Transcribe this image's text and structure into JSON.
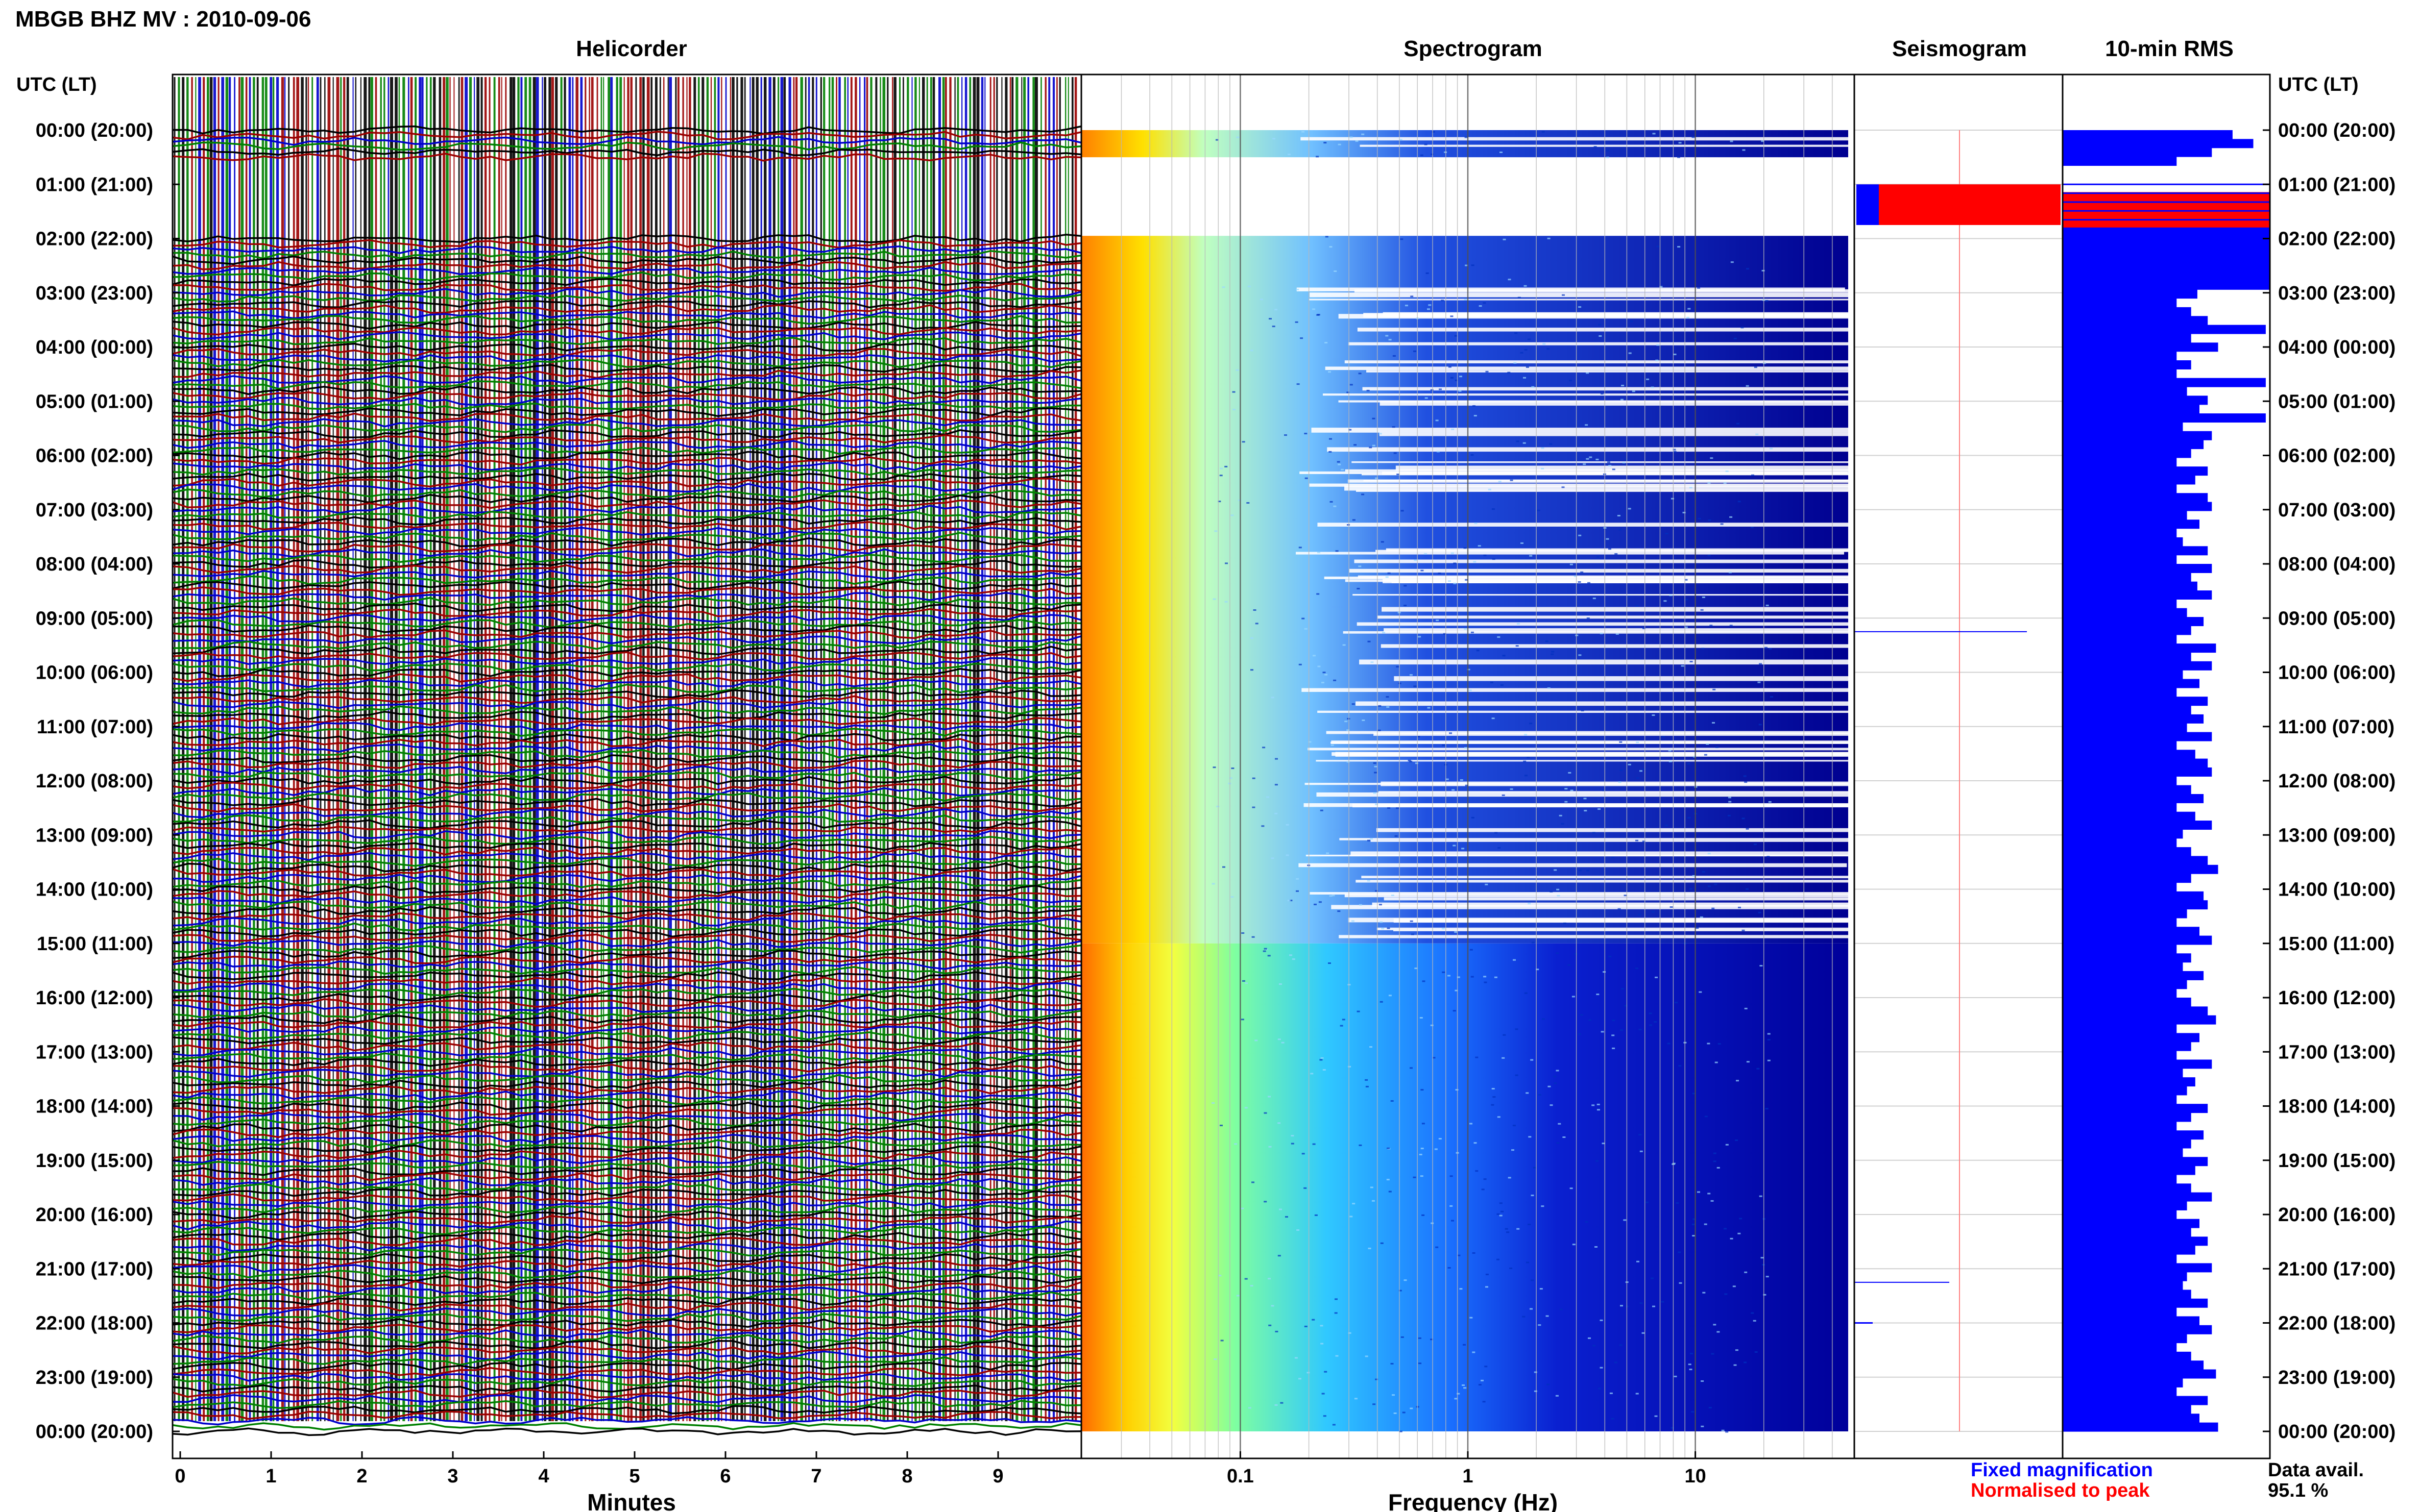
{
  "header": {
    "station_title": "MBGB BHZ MV : 2010-09-06"
  },
  "panels": {
    "helicorder_title": "Helicorder",
    "spectrogram_title": "Spectrogram",
    "seismogram_title": "Seismogram",
    "rms_title": "10-min RMS"
  },
  "axes": {
    "left_axis_label": "UTC (LT)",
    "right_axis_label": "UTC (LT)",
    "helicorder_xlabel": "Minutes",
    "spectrogram_xlabel": "Frequency (Hz)"
  },
  "legend": {
    "fixed_label": "Fixed magnification",
    "normalised_label": "Normalised to peak",
    "data_avail_label": "Data avail.",
    "data_avail_value": "95.1 %"
  },
  "colors": {
    "fixed": "#0000ff",
    "normalised": "#ff0000",
    "trace_black": "#000000",
    "trace_red": "#9b0000",
    "trace_blue": "#0000cc",
    "trace_green": "#008000",
    "spec_low": "#00008b",
    "spec_high": "#ff4000"
  },
  "chart_data": [
    {
      "type": "line",
      "title": "Helicorder",
      "xlabel": "Minutes",
      "x_ticks": [
        "0",
        "1",
        "2",
        "3",
        "4",
        "5",
        "6",
        "7",
        "8",
        "9"
      ],
      "xlim": [
        0,
        10
      ],
      "y_ticks": [
        "00:00 (20:00)",
        "01:00 (21:00)",
        "02:00 (22:00)",
        "03:00 (23:00)",
        "04:00 (00:00)",
        "05:00 (01:00)",
        "06:00 (02:00)",
        "07:00 (03:00)",
        "08:00 (04:00)",
        "09:00 (05:00)",
        "10:00 (06:00)",
        "11:00 (07:00)",
        "12:00 (08:00)",
        "13:00 (09:00)",
        "14:00 (10:00)",
        "15:00 (11:00)",
        "16:00 (12:00)",
        "17:00 (13:00)",
        "18:00 (14:00)",
        "19:00 (15:00)",
        "20:00 (16:00)",
        "21:00 (17:00)",
        "22:00 (18:00)",
        "23:00 (19:00)",
        "00:00 (20:00)"
      ],
      "ylim_hours": [
        0,
        24
      ]
    },
    {
      "type": "heatmap",
      "title": "Spectrogram",
      "xlabel": "Frequency (Hz)",
      "x_scale": "log",
      "xlim": [
        0.02,
        50
      ],
      "x_ticks": [
        0.1,
        1,
        10
      ],
      "x_tick_labels": [
        "0.1",
        "1",
        "10"
      ],
      "gap_hours": [
        [
          0.5,
          1.95
        ]
      ]
    },
    {
      "type": "line",
      "title": "Seismogram",
      "normalised_hours": [
        1.0,
        1.75
      ]
    },
    {
      "type": "bar",
      "title": "10-min RMS",
      "orientation": "horizontal",
      "normalised_hours": [
        1.0,
        1.75
      ],
      "values": [
        0.82,
        0.92,
        0.72,
        0.55,
        0,
        0,
        0,
        0,
        0,
        0,
        0,
        1.0,
        1.0,
        1.0,
        1.0,
        1.0,
        1.0,
        1.0,
        0.65,
        0.55,
        0.62,
        0.7,
        0.98,
        0.62,
        0.75,
        0.55,
        0.62,
        0.55,
        0.98,
        0.6,
        0.7,
        0.66,
        0.98,
        0.58,
        0.72,
        0.68,
        0.62,
        0.55,
        0.7,
        0.64,
        0.55,
        0.7,
        0.72,
        0.6,
        0.66,
        0.55,
        0.58,
        0.7,
        0.55,
        0.72,
        0.62,
        0.65,
        0.72,
        0.55,
        0.6,
        0.68,
        0.62,
        0.55,
        0.74,
        0.62,
        0.72,
        0.58,
        0.66,
        0.55,
        0.7,
        0.62,
        0.68,
        0.6,
        0.72,
        0.55,
        0.64,
        0.7,
        0.72,
        0.55,
        0.62,
        0.68,
        0.55,
        0.64,
        0.72,
        0.58,
        0.55,
        0.62,
        0.7,
        0.75,
        0.62,
        0.55,
        0.68,
        0.7,
        0.6,
        0.55,
        0.66,
        0.72,
        0.55,
        0.62,
        0.58,
        0.68,
        0.6,
        0.55,
        0.62,
        0.7,
        0.74,
        0.55,
        0.66,
        0.62,
        0.55,
        0.72,
        0.58,
        0.64,
        0.6,
        0.55,
        0.7,
        0.62,
        0.55,
        0.68,
        0.62,
        0.58,
        0.7,
        0.64,
        0.55,
        0.62,
        0.72,
        0.6,
        0.55,
        0.66,
        0.62,
        0.7,
        0.64,
        0.55,
        0.72,
        0.6,
        0.58,
        0.62,
        0.7,
        0.55,
        0.66,
        0.72,
        0.6,
        0.55,
        0.62,
        0.68,
        0.74,
        0.58,
        0.55,
        0.7,
        0.62,
        0.66,
        0.75
      ]
    }
  ]
}
